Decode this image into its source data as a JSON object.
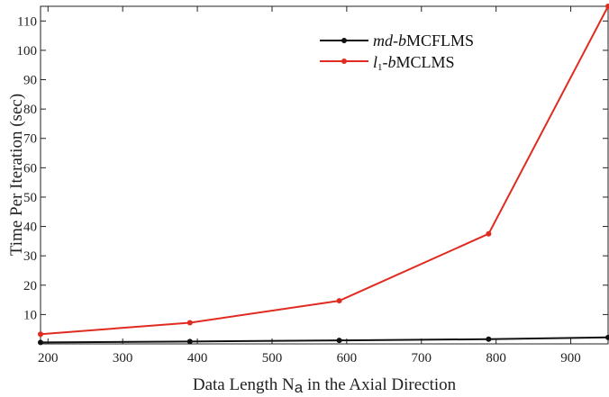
{
  "chart_data": {
    "type": "line",
    "xlabel": "Data Length N",
    "xlabel_sub": "a",
    "xlabel_rest": " in the Axial Direction",
    "ylabel": "Time Per Iteration (sec)",
    "xlim": [
      190,
      950
    ],
    "ylim": [
      0,
      115
    ],
    "xticks": [
      200,
      300,
      400,
      500,
      600,
      700,
      800,
      900
    ],
    "yticks": [
      10,
      20,
      30,
      40,
      50,
      60,
      70,
      80,
      90,
      100,
      110
    ],
    "legend_position": "top-center",
    "series": [
      {
        "name_parts": {
          "italic": "md-b",
          "normal": "MCFLMS"
        },
        "color": "#111111",
        "x": [
          190,
          390,
          590,
          790,
          950
        ],
        "y": [
          0.5,
          0.8,
          1.2,
          1.6,
          2.2
        ]
      },
      {
        "name_parts": {
          "italic_l": "l",
          "sub": "1",
          "italic": "-b",
          "normal": "MCLMS"
        },
        "color": "#e02b20",
        "x": [
          190,
          390,
          590,
          790,
          950
        ],
        "y": [
          3.3,
          7.2,
          14.7,
          37.5,
          115
        ]
      }
    ]
  }
}
